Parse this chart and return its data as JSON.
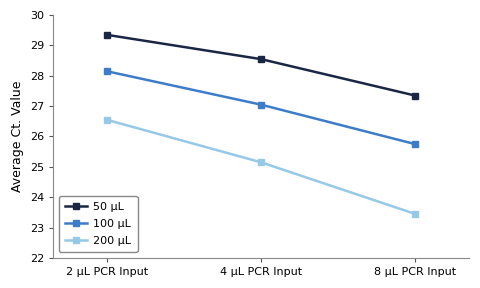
{
  "x_labels": [
    "2 μL PCR Input",
    "4 μL PCR Input",
    "8 μL PCR Input"
  ],
  "x_positions": [
    0,
    1,
    2
  ],
  "series": [
    {
      "label": "50 μL",
      "values": [
        29.35,
        28.55,
        27.35
      ],
      "color": "#1a2744",
      "marker": "s",
      "linewidth": 1.8,
      "markersize": 5
    },
    {
      "label": "100 μL",
      "values": [
        28.15,
        27.05,
        25.75
      ],
      "color": "#3d7cc9",
      "marker": "s",
      "linewidth": 1.8,
      "markersize": 5
    },
    {
      "label": "200 μL",
      "values": [
        26.55,
        25.15,
        23.45
      ],
      "color": "#96c8e8",
      "marker": "s",
      "linewidth": 1.8,
      "markersize": 5
    }
  ],
  "ylabel": "Average Ct. Value",
  "ylim": [
    22,
    30
  ],
  "yticks": [
    22,
    23,
    24,
    25,
    26,
    27,
    28,
    29,
    30
  ],
  "legend_loc": "lower left",
  "background_color": "#ffffff",
  "plot_bg_color": "#ffffff",
  "tick_color": "#555555",
  "spine_color": "#888888",
  "ylabel_fontsize": 9,
  "tick_fontsize": 8,
  "legend_fontsize": 8
}
